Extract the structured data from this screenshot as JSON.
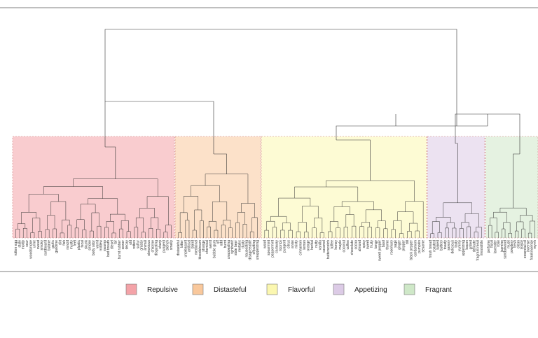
{
  "chart_data": {
    "type": "dendrogram",
    "clusters": [
      {
        "name": "Repulsive",
        "color": "#f4a3a8",
        "leaves": [
          "rotten egg",
          "stale",
          "moldy",
          "sour",
          "woodsmoke",
          "urine",
          "sweat",
          "smoky",
          "cardboard",
          "butane",
          "garlic",
          "gasoline",
          "dirt",
          "fish",
          "rancid",
          "musty",
          "feet",
          "plastic",
          "fecal",
          "skunk",
          "smoke",
          "body odor",
          "vomit",
          "mildew",
          "swamp",
          "bad breath",
          "diesel",
          "tar",
          "burnt rubber",
          "sewer",
          "decay",
          "old",
          "rotten",
          "sulfur",
          "grassy",
          "animal",
          "obnoxious",
          "chlorine",
          "disgusting",
          "sharp",
          "pungent",
          "stench",
          "smelly"
        ]
      },
      {
        "name": "Distasteful",
        "color": "#f9c89c",
        "leaves": [
          "distasteful",
          "bitter",
          "unpleasant",
          "artificial",
          "bland",
          "medicinal",
          "bloodstream",
          "strange",
          "chemical",
          "weird",
          "bubble gum",
          "off",
          "odd",
          "burnt",
          "unappealing",
          "synthetic",
          "stale beer",
          "metallic",
          "dusty",
          "nauseating",
          "disagreeable",
          "offputting",
          "unappetizing"
        ]
      },
      {
        "name": "Flavorful",
        "color": "#fbf7b0",
        "leaves": [
          "wood",
          "spearmint",
          "peppermint",
          "caraway",
          "licorice",
          "pungent",
          "citrus",
          "anise",
          "minty",
          "cinnamon",
          "lemon",
          "orange",
          "herbal",
          "nutty",
          "vanilla",
          "caramel",
          "butterscotch",
          "toffee",
          "honey",
          "maple",
          "coconut",
          "coffee",
          "chocolate",
          "cocoa",
          "almond",
          "spicy",
          "sweet",
          "fruity",
          "tangy",
          "sweet pepper",
          "basil",
          "thyme",
          "rosemary",
          "sage",
          "ginger",
          "pepper",
          "dill",
          "black pepper",
          "cardamom",
          "pumpkin",
          "sesame"
        ]
      },
      {
        "name": "Appetizing",
        "color": "#dccbe6",
        "leaves": [
          "fresh bread",
          "roasted",
          "baked",
          "buttery",
          "toasty",
          "savory",
          "delicious",
          "tasty",
          "yummy",
          "appetizing",
          "bacon",
          "grilled",
          "delicate",
          "fragrant meal",
          "irresistible"
        ]
      },
      {
        "name": "Fragrant",
        "color": "#cfe8c8",
        "leaves": [
          "perfume",
          "floral",
          "lavender",
          "rose",
          "jasmine",
          "sandalwood",
          "musk",
          "powdery",
          "fresh",
          "clean",
          "soapy",
          "essential oil",
          "incense",
          "frankincense",
          "myrrh"
        ]
      }
    ],
    "legend": [
      "Repulsive",
      "Distasteful",
      "Flavorful",
      "Appetizing",
      "Fragrant"
    ],
    "legend_position": "bottom"
  }
}
